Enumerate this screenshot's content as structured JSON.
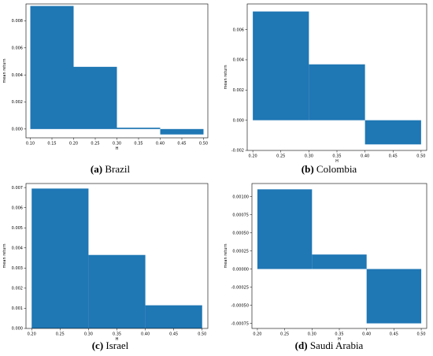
{
  "chart_data": [
    {
      "type": "bar",
      "caption_letter": "(a)",
      "caption_text": "Brazil",
      "xlabel": "H",
      "ylabel": "mean return",
      "xlim": [
        0.09,
        0.51
      ],
      "ylim": [
        -0.00065,
        0.00925
      ],
      "xticks": [
        "0.10",
        "0.15",
        "0.20",
        "0.25",
        "0.30",
        "0.35",
        "0.40",
        "0.45",
        "0.50"
      ],
      "xtick_values": [
        0.1,
        0.15,
        0.2,
        0.25,
        0.3,
        0.35,
        0.4,
        0.45,
        0.5
      ],
      "yticks": [
        "0.000",
        "0.002",
        "0.004",
        "0.006",
        "0.008"
      ],
      "ytick_values": [
        0.0,
        0.002,
        0.004,
        0.006,
        0.008
      ],
      "bars": [
        {
          "x0": 0.1,
          "x1": 0.2,
          "value": 0.0091
        },
        {
          "x0": 0.2,
          "x1": 0.3,
          "value": 0.0046
        },
        {
          "x0": 0.3,
          "x1": 0.4,
          "value": 0.0001
        },
        {
          "x0": 0.4,
          "x1": 0.5,
          "value": -0.0004
        }
      ],
      "bar_color": "#1f77b4"
    },
    {
      "type": "bar",
      "caption_letter": "(b)",
      "caption_text": "Colombia",
      "xlabel": "H",
      "ylabel": "mean return",
      "xlim": [
        0.19,
        0.51
      ],
      "ylim": [
        -0.002,
        0.0077
      ],
      "xticks": [
        "0.20",
        "0.25",
        "0.30",
        "0.35",
        "0.40",
        "0.45",
        "0.50"
      ],
      "xtick_values": [
        0.2,
        0.25,
        0.3,
        0.35,
        0.4,
        0.45,
        0.5
      ],
      "yticks": [
        "-0.002",
        "0.000",
        "0.002",
        "0.004",
        "0.006"
      ],
      "ytick_values": [
        -0.002,
        0.0,
        0.002,
        0.004,
        0.006
      ],
      "bars": [
        {
          "x0": 0.2,
          "x1": 0.3,
          "value": 0.0072
        },
        {
          "x0": 0.3,
          "x1": 0.4,
          "value": 0.0037
        },
        {
          "x0": 0.4,
          "x1": 0.5,
          "value": -0.0016
        }
      ],
      "bar_color": "#1f77b4"
    },
    {
      "type": "bar",
      "caption_letter": "(c)",
      "caption_text": "Israel",
      "xlabel": "H",
      "ylabel": "mean return",
      "xlim": [
        0.19,
        0.51
      ],
      "ylim": [
        0.0,
        0.0072
      ],
      "xticks": [
        "0.20",
        "0.25",
        "0.30",
        "0.35",
        "0.40",
        "0.45",
        "0.50"
      ],
      "xtick_values": [
        0.2,
        0.25,
        0.3,
        0.35,
        0.4,
        0.45,
        0.5
      ],
      "yticks": [
        "0.000",
        "0.001",
        "0.002",
        "0.003",
        "0.004",
        "0.005",
        "0.006",
        "0.007"
      ],
      "ytick_values": [
        0.0,
        0.001,
        0.002,
        0.003,
        0.004,
        0.005,
        0.006,
        0.007
      ],
      "bars": [
        {
          "x0": 0.2,
          "x1": 0.3,
          "value": 0.00695
        },
        {
          "x0": 0.3,
          "x1": 0.4,
          "value": 0.00365
        },
        {
          "x0": 0.4,
          "x1": 0.5,
          "value": 0.00115
        }
      ],
      "bar_color": "#1f77b4"
    },
    {
      "type": "bar",
      "caption_letter": "(d)",
      "caption_text": "Saudi Arabia",
      "xlabel": "H",
      "ylabel": "mean return",
      "xlim": [
        0.19,
        0.51
      ],
      "ylim": [
        -0.00082,
        0.00118
      ],
      "xticks": [
        "0.20",
        "0.25",
        "0.30",
        "0.35",
        "0.40",
        "0.45",
        "0.50"
      ],
      "xtick_values": [
        0.2,
        0.25,
        0.3,
        0.35,
        0.4,
        0.45,
        0.5
      ],
      "yticks": [
        "-0.00075",
        "-0.00050",
        "-0.00025",
        "0.00000",
        "0.00025",
        "0.00050",
        "0.00075",
        "0.00100"
      ],
      "ytick_values": [
        -0.00075,
        -0.0005,
        -0.00025,
        0.0,
        0.00025,
        0.0005,
        0.00075,
        0.001
      ],
      "bars": [
        {
          "x0": 0.2,
          "x1": 0.3,
          "value": 0.0011
        },
        {
          "x0": 0.3,
          "x1": 0.4,
          "value": 0.0002
        },
        {
          "x0": 0.4,
          "x1": 0.5,
          "value": -0.00075
        }
      ],
      "bar_color": "#1f77b4"
    }
  ]
}
